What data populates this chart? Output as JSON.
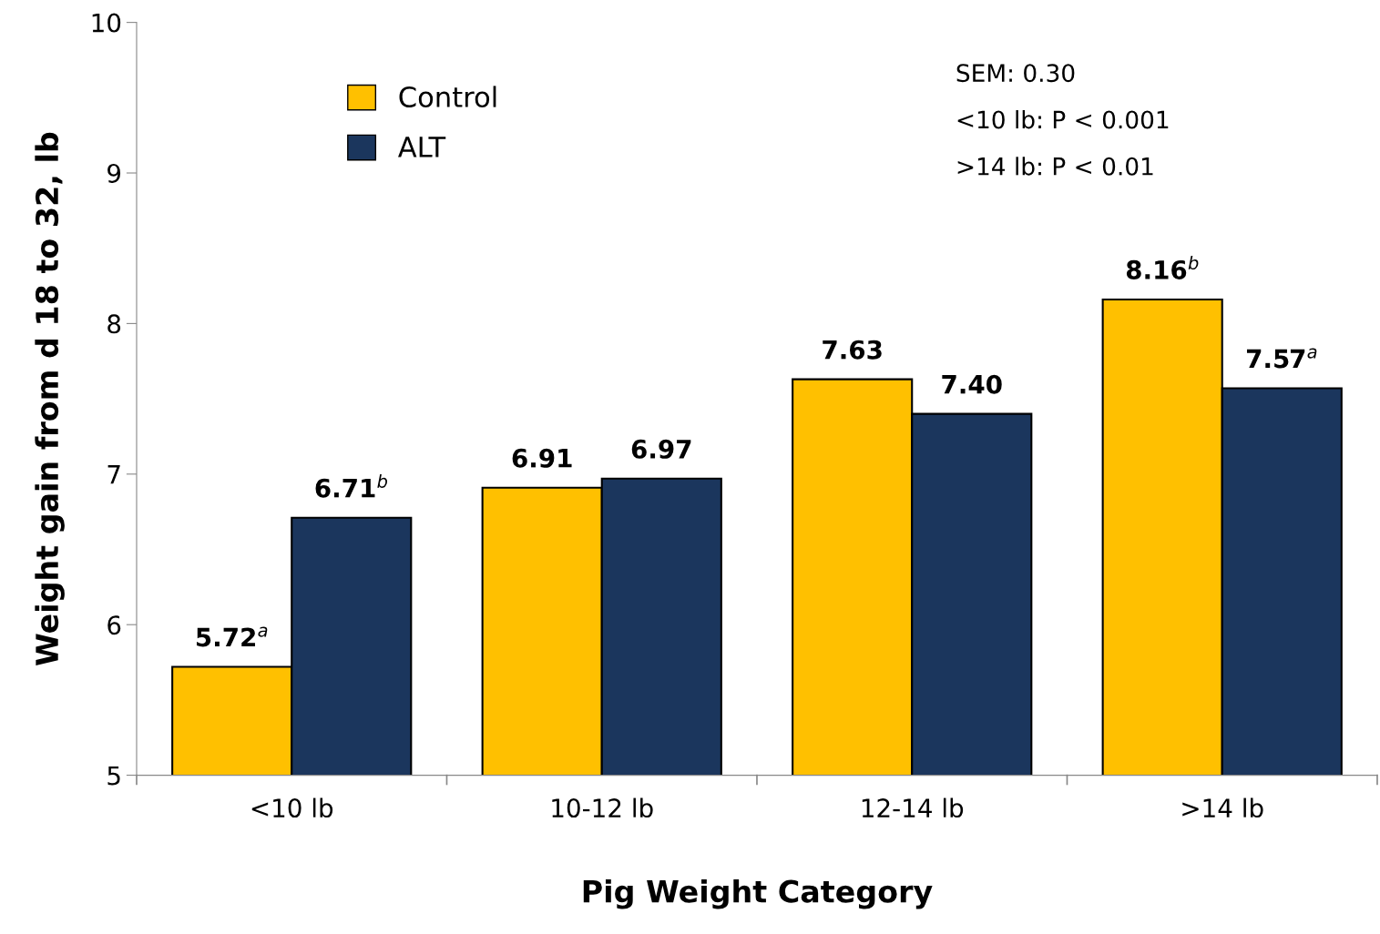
{
  "chart_data": {
    "type": "bar",
    "xlabel": "Pig Weight Category",
    "ylabel": "Weight gain from d 18 to 32, lb",
    "categories": [
      "<10 lb",
      "10-12 lb",
      "12-14 lb",
      ">14 lb"
    ],
    "series": [
      {
        "name": "Control",
        "color": "#ffc000",
        "values": [
          5.72,
          6.91,
          7.63,
          8.16
        ],
        "value_labels": [
          "5.72$^{a}$",
          "6.91",
          "7.63",
          "8.16$^{b}$"
        ]
      },
      {
        "name": "ALT",
        "color": "#1b365d",
        "values": [
          6.71,
          6.97,
          7.4,
          7.57
        ],
        "value_labels": [
          "6.71$^{b}$",
          "6.97",
          "7.40",
          "7.57$^{a}$"
        ]
      }
    ],
    "ylim": [
      5,
      10
    ],
    "yticks": [
      5,
      6,
      7,
      8,
      9,
      10
    ],
    "grid": false,
    "legend": "top left",
    "annotations": [
      "SEM: 0.30",
      "<10 lb: P < 0.001",
      ">14 lb: P < 0.01"
    ]
  }
}
